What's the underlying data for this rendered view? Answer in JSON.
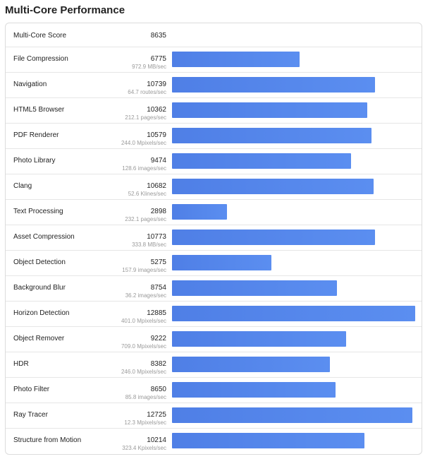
{
  "title": "Multi-Core Performance",
  "summary": {
    "label": "Multi-Core Score",
    "score": "8635"
  },
  "bar_color": "#4f7fe6",
  "max_score": 12885,
  "tests": [
    {
      "name": "File Compression",
      "score": "6775",
      "rate": "972.9 MB/sec"
    },
    {
      "name": "Navigation",
      "score": "10739",
      "rate": "64.7 routes/sec"
    },
    {
      "name": "HTML5 Browser",
      "score": "10362",
      "rate": "212.1 pages/sec"
    },
    {
      "name": "PDF Renderer",
      "score": "10579",
      "rate": "244.0 Mpixels/sec"
    },
    {
      "name": "Photo Library",
      "score": "9474",
      "rate": "128.6 images/sec"
    },
    {
      "name": "Clang",
      "score": "10682",
      "rate": "52.6 Klines/sec"
    },
    {
      "name": "Text Processing",
      "score": "2898",
      "rate": "232.1 pages/sec"
    },
    {
      "name": "Asset Compression",
      "score": "10773",
      "rate": "333.8 MB/sec"
    },
    {
      "name": "Object Detection",
      "score": "5275",
      "rate": "157.9 images/sec"
    },
    {
      "name": "Background Blur",
      "score": "8754",
      "rate": "36.2 images/sec"
    },
    {
      "name": "Horizon Detection",
      "score": "12885",
      "rate": "401.0 Mpixels/sec"
    },
    {
      "name": "Object Remover",
      "score": "9222",
      "rate": "709.0 Mpixels/sec"
    },
    {
      "name": "HDR",
      "score": "8382",
      "rate": "246.0 Mpixels/sec"
    },
    {
      "name": "Photo Filter",
      "score": "8650",
      "rate": "85.8 images/sec"
    },
    {
      "name": "Ray Tracer",
      "score": "12725",
      "rate": "12.3 Mpixels/sec"
    },
    {
      "name": "Structure from Motion",
      "score": "10214",
      "rate": "323.4 Kpixels/sec"
    }
  ]
}
